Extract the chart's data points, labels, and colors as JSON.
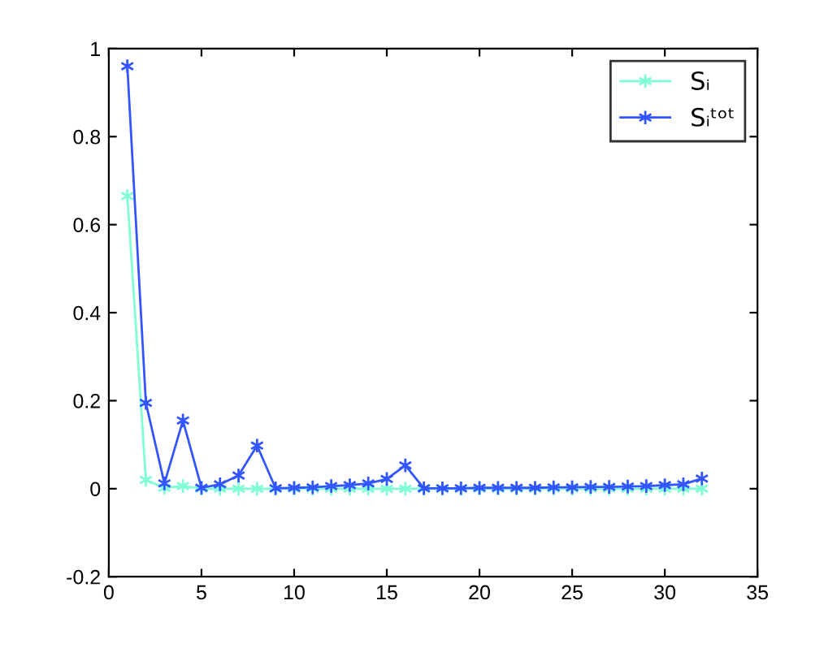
{
  "chart_data": {
    "type": "line",
    "x": [
      1,
      2,
      3,
      4,
      5,
      6,
      7,
      8,
      9,
      10,
      11,
      12,
      13,
      14,
      15,
      16,
      17,
      18,
      19,
      20,
      21,
      22,
      23,
      24,
      25,
      26,
      27,
      28,
      29,
      30,
      31,
      32
    ],
    "series": [
      {
        "name": "Sᵢ",
        "color": "#7fffd4",
        "values": [
          0.665,
          0.02,
          0.002,
          0.006,
          0,
          0,
          0,
          0,
          0,
          0,
          0,
          0,
          0,
          0,
          0,
          0,
          0,
          0,
          0,
          0,
          0,
          0,
          0,
          0,
          0,
          0,
          0,
          0,
          0,
          0,
          0,
          0
        ]
      },
      {
        "name": "Sᵢᵗᵒᵗ",
        "color": "#3355ff",
        "values": [
          0.96,
          0.195,
          0.012,
          0.155,
          0.002,
          0.01,
          0.03,
          0.098,
          0.001,
          0.002,
          0.003,
          0.006,
          0.008,
          0.012,
          0.022,
          0.053,
          0.001,
          0.001,
          0.001,
          0.002,
          0.002,
          0.002,
          0.002,
          0.003,
          0.003,
          0.004,
          0.004,
          0.005,
          0.006,
          0.008,
          0.01,
          0.023
        ]
      }
    ],
    "xlim": [
      0,
      35
    ],
    "xticks": [
      0,
      5,
      10,
      15,
      20,
      25,
      30,
      35
    ],
    "ylim": [
      -0.2,
      1
    ],
    "yticks": [
      {
        "value": -0.2,
        "label": "-0.2"
      },
      0,
      0.2,
      0.4,
      0.6,
      0.8,
      1
    ],
    "marker": "cross",
    "line_style": "solid",
    "grid": false,
    "legend": "top right"
  }
}
